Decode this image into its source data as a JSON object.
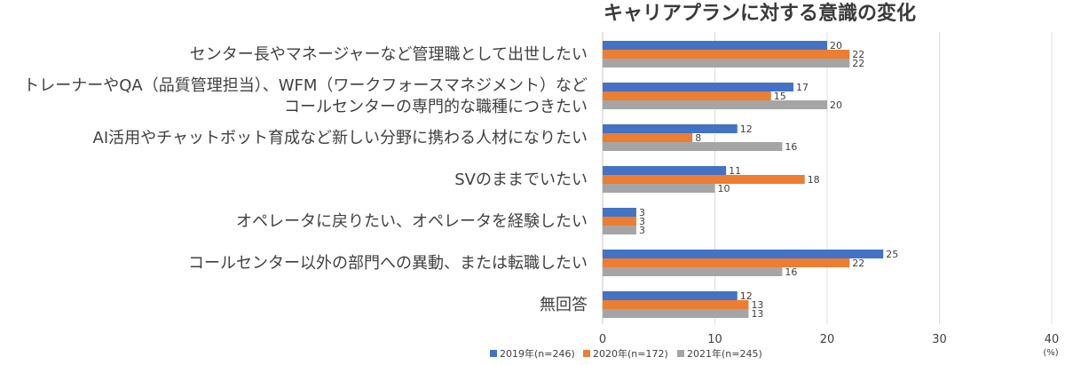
{
  "chart_data": {
    "type": "bar",
    "orientation": "horizontal",
    "title": "キャリアプランに対する意識の変化",
    "unit_label": "(%)",
    "categories": [
      [
        "センター長やマネージャーなど管理職として出世したい"
      ],
      [
        "トレーナーやQA（品質管理担当）、WFM（ワークフォースマネジメント）など",
        "コールセンターの専門的な職種につきたい"
      ],
      [
        "AI活用やチャットボット育成など新しい分野に携わる人材になりたい"
      ],
      [
        "SVのままでいたい"
      ],
      [
        "オペレータに戻りたい、オペレータを経験したい"
      ],
      [
        "コールセンター以外の部門への異動、または転職したい"
      ],
      [
        "無回答"
      ]
    ],
    "series": [
      {
        "name": "2019年(n=246)",
        "color": "#4472c4",
        "values": [
          20,
          17,
          12,
          11,
          3,
          25,
          12
        ]
      },
      {
        "name": "2020年(n=172)",
        "color": "#ed7d31",
        "values": [
          22,
          15,
          8,
          18,
          3,
          22,
          13
        ]
      },
      {
        "name": "2021年(n=245)",
        "color": "#a5a5a5",
        "values": [
          22,
          20,
          16,
          10,
          3,
          16,
          13
        ]
      }
    ],
    "xlim": [
      0,
      40
    ],
    "xticks": [
      0,
      10,
      20,
      30,
      40
    ],
    "grid": true,
    "legend": "bottom-center",
    "data_labels": true
  }
}
